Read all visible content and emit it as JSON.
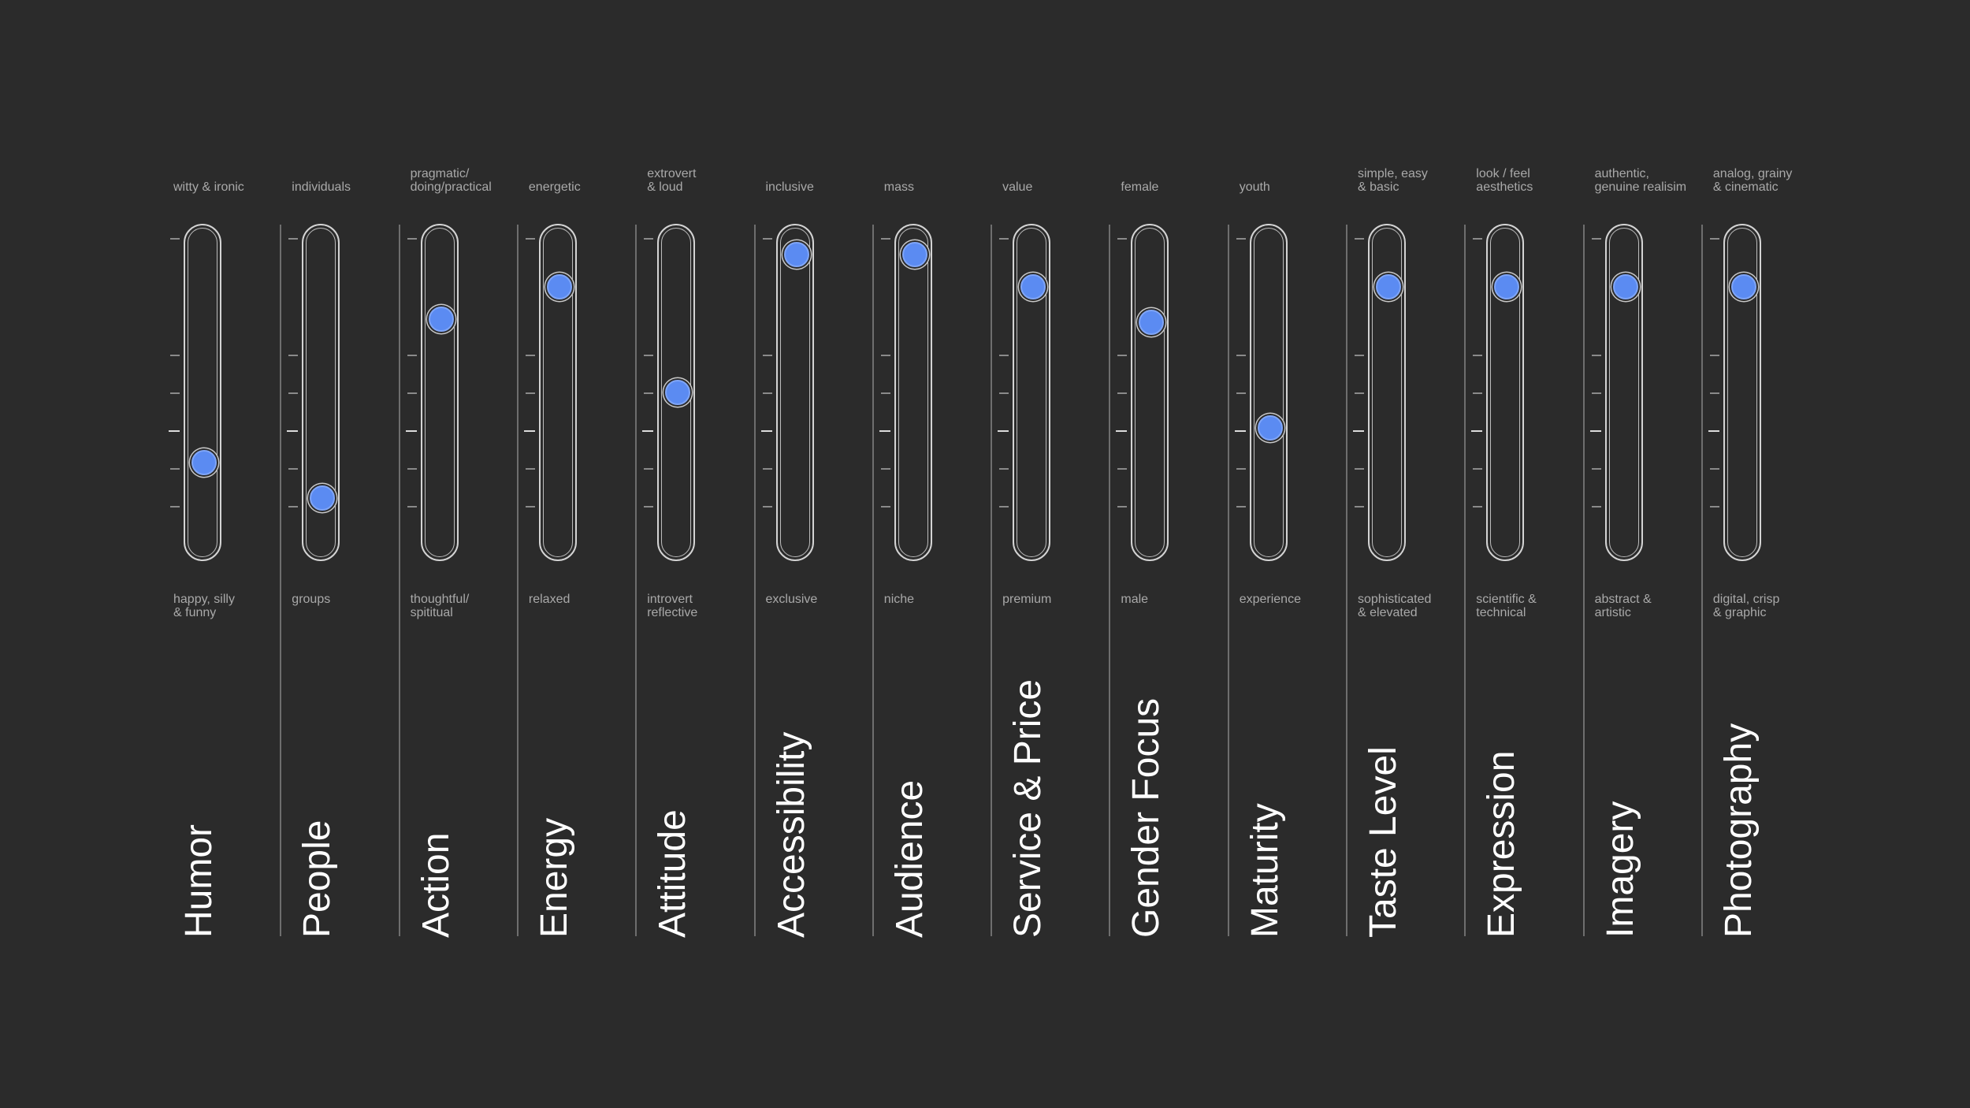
{
  "colors": {
    "background": "#2b2b2b",
    "accent": "#5b8bf2",
    "track": "#d4d4d4",
    "muted_text": "#a9a9a9"
  },
  "sliders": [
    {
      "name": "Humor",
      "top": "witty & ironic",
      "bottom": "happy,  silly\n& funny",
      "value": 0.26
    },
    {
      "name": "People",
      "top": "individuals",
      "bottom": "groups",
      "value": 0.14
    },
    {
      "name": "Action",
      "top": "pragmatic/\ndoing/practical",
      "bottom": "thoughtful/\nspititual",
      "value": 0.75
    },
    {
      "name": "Energy",
      "top": "energetic",
      "bottom": "relaxed",
      "value": 0.86
    },
    {
      "name": "Attitude",
      "top": "extrovert\n& loud",
      "bottom": "introvert\nreflective",
      "value": 0.5
    },
    {
      "name": "Accessibility",
      "top": "inclusive",
      "bottom": "exclusive",
      "value": 0.97
    },
    {
      "name": "Audience",
      "top": "mass",
      "bottom": "niche",
      "value": 0.97
    },
    {
      "name": "Service & Price",
      "top": "value",
      "bottom": "premium",
      "value": 0.86
    },
    {
      "name": "Gender Focus",
      "top": "female",
      "bottom": "male",
      "value": 0.74
    },
    {
      "name": "Maturity",
      "top": "youth",
      "bottom": "experience",
      "value": 0.38
    },
    {
      "name": "Taste Level",
      "top": "simple, easy\n & basic",
      "bottom": "sophisticated\n& elevated",
      "value": 0.86
    },
    {
      "name": "Expression",
      "top": "look / feel\naesthetics",
      "bottom": "scientific &\ntechnical",
      "value": 0.86
    },
    {
      "name": "Imagery",
      "top": "authentic,\ngenuine realisim",
      "bottom": "abstract &\nartistic",
      "value": 0.86
    },
    {
      "name": "Photography",
      "top": "analog, grainy\n& cinematic",
      "bottom": "digital, crisp\n& graphic",
      "value": 0.86
    }
  ]
}
